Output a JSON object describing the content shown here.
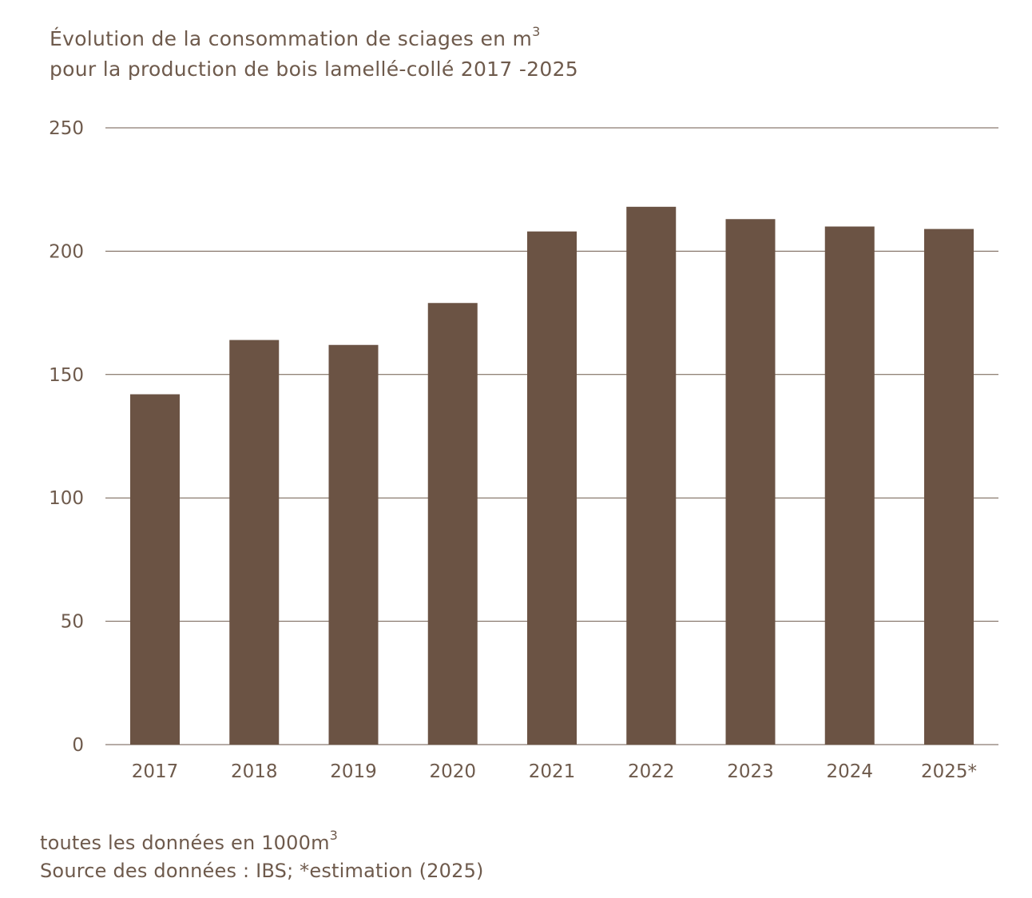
{
  "title": {
    "line1_text": "Évolution de la consommation de sciages en m",
    "line1_sup": "3",
    "line2_text": "pour la production de bois lamellé-collé 2017 -2025"
  },
  "notes": {
    "units_text": "toutes les données en 1000m",
    "units_sup": "3",
    "source_text": "Source des données : IBS; *estimation (2025)"
  },
  "colors": {
    "bar": "#6b5344",
    "text": "#6e5a4c",
    "grid": "#6e5a4c"
  },
  "chart_data": {
    "type": "bar",
    "categories": [
      "2017",
      "2018",
      "2019",
      "2020",
      "2021",
      "2022",
      "2023",
      "2024",
      "2025*"
    ],
    "values": [
      142,
      164,
      162,
      179,
      208,
      218,
      213,
      210,
      209
    ],
    "yticks": [
      "0",
      "50",
      "100",
      "150",
      "200",
      "250"
    ],
    "ylim": [
      0,
      250
    ],
    "grid": true,
    "legend": "none"
  }
}
